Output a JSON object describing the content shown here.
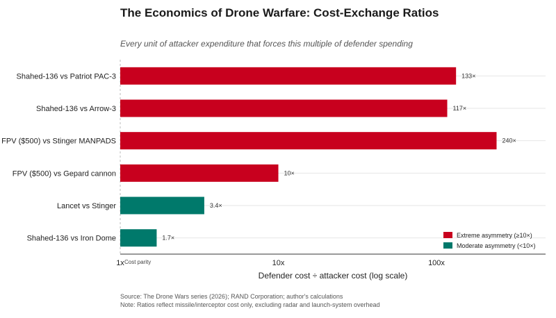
{
  "title": "The Economics of Drone Warfare: Cost-Exchange Ratios",
  "subtitle": "Every unit of attacker expenditure that forces this multiple of defender spending",
  "source_lines": [
    "Source: The Drone Wars series (2026); RAND Corporation; author's calculations",
    "Note: Ratios reflect missile/interceptor cost only, excluding radar and launch-system overhead"
  ],
  "colors": {
    "extreme": "#c8001e",
    "moderate": "#00796b",
    "grid": "#e6e6e6",
    "parity_line": "#bbbbbb"
  },
  "chart_data": {
    "type": "bar",
    "orientation": "horizontal",
    "title": "The Economics of Drone Warfare: Cost-Exchange Ratios",
    "subtitle": "Every unit of attacker expenditure that forces this multiple of defender spending",
    "xlabel": "Defender cost ÷ attacker cost  (log scale)",
    "ylabel": "",
    "x_scale": "log",
    "xlim": [
      1,
      600
    ],
    "x_ticks": [
      {
        "value": 1,
        "label": "1x"
      },
      {
        "value": 10,
        "label": "10x"
      },
      {
        "value": 100,
        "label": "100x"
      }
    ],
    "categories": [
      "Shahed-136 vs Patriot PAC-3",
      "Shahed-136 vs Arrow-3",
      "FPV ($500) vs Stinger MANPADS",
      "FPV ($500) vs Gepard cannon",
      "Lancet vs Stinger",
      "Shahed-136 vs Iron Dome"
    ],
    "values": [
      133,
      117,
      240,
      10,
      3.4,
      1.7
    ],
    "value_labels": [
      "133×",
      "117×",
      "240×",
      "10×",
      "3.4×",
      "1.7×"
    ],
    "groups": [
      "extreme",
      "extreme",
      "extreme",
      "extreme",
      "moderate",
      "moderate"
    ],
    "legend": [
      {
        "key": "extreme",
        "label": "Extreme asymmetry (≥10×)"
      },
      {
        "key": "moderate",
        "label": "Moderate asymmetry (<10×)"
      }
    ],
    "legend_position": "bottom-right",
    "annotation": {
      "x": 1,
      "text": "Cost parity"
    },
    "grid": true
  }
}
